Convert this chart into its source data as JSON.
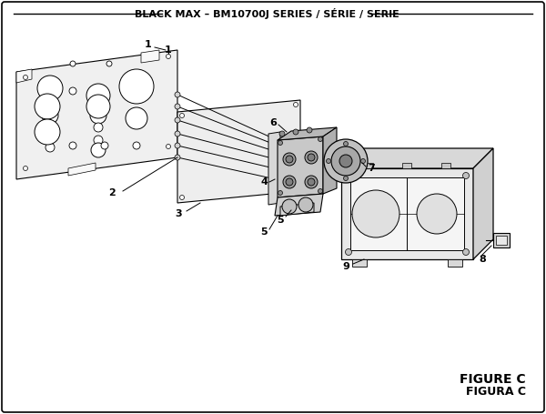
{
  "title": "BLACK MAX – BM10700J SERIES / SÉRIE / SERIE",
  "figure_label": "FIGURE C",
  "figure_label2": "FIGURA C",
  "bg_color": "#ffffff",
  "line_color": "#000000",
  "title_fontsize": 8.0,
  "label_fontsize": 8.0,
  "figure_label_fontsize": 10
}
